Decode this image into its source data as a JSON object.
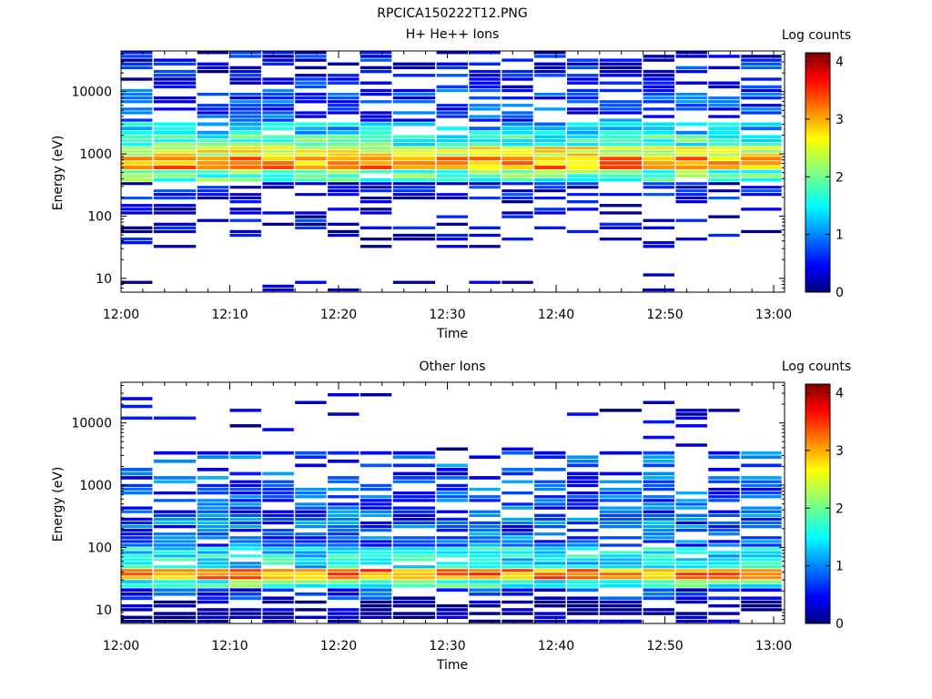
{
  "page_title": "RPCICA150222T12.PNG",
  "chart_data": [
    {
      "type": "heatmap",
      "title": "H+ He++ Ions",
      "xlabel": "Time",
      "ylabel": "Energy (eV)",
      "xscale": "linear",
      "yscale": "log",
      "xlim": [
        "12:00",
        "13:01"
      ],
      "ylim": [
        6,
        45000
      ],
      "x_ticks": [
        "12:00",
        "12:10",
        "12:20",
        "12:30",
        "12:40",
        "12:50",
        "13:00"
      ],
      "y_ticks": [
        10,
        100,
        1000,
        10000
      ],
      "y_tick_labels": [
        "10",
        "100",
        "1000",
        "10000"
      ],
      "colorbar": {
        "label": "Log counts",
        "range": [
          0,
          4.15
        ],
        "ticks": [
          0,
          1,
          2,
          3,
          4
        ],
        "tick_labels": [
          "0",
          "1",
          "2",
          "3",
          "4"
        ],
        "colormap": "jet"
      },
      "time_bins": [
        "12:00",
        "12:03",
        "12:07",
        "12:10",
        "12:13",
        "12:16",
        "12:19",
        "12:22",
        "12:25",
        "12:29",
        "12:32",
        "12:35",
        "12:38",
        "12:41",
        "12:44",
        "12:48",
        "12:51",
        "12:54",
        "12:57"
      ],
      "bands": [
        {
          "e_range": [
            45000,
            11000
          ],
          "value": 0.5,
          "fill": 0.6
        },
        {
          "e_range": [
            11000,
            3200
          ],
          "value": 0.75,
          "fill": 0.6
        },
        {
          "e_range": [
            3200,
            2000
          ],
          "value": 1.3,
          "fill": 0.85
        },
        {
          "e_range": [
            2000,
            1300
          ],
          "value": 1.8,
          "fill": 0.95
        },
        {
          "e_range": [
            1300,
            900
          ],
          "value": 2.5,
          "fill": 1.0
        },
        {
          "e_range": [
            900,
            550
          ],
          "value": 3.0,
          "fill": 1.0
        },
        {
          "e_range": [
            550,
            350
          ],
          "value": 1.9,
          "fill": 0.95
        },
        {
          "e_range": [
            350,
            180
          ],
          "value": 0.5,
          "fill": 0.6
        },
        {
          "e_range": [
            180,
            90
          ],
          "value": 0.25,
          "fill": 0.35
        },
        {
          "e_range": [
            90,
            30
          ],
          "value": 0.4,
          "fill": 0.3
        },
        {
          "e_range": [
            12,
            6
          ],
          "value": 0.1,
          "fill": 0.1
        }
      ]
    },
    {
      "type": "heatmap",
      "title": "Other Ions",
      "xlabel": "Time",
      "ylabel": "Energy (eV)",
      "xscale": "linear",
      "yscale": "log",
      "xlim": [
        "12:00",
        "13:01"
      ],
      "ylim": [
        6,
        45000
      ],
      "x_ticks": [
        "12:00",
        "12:10",
        "12:20",
        "12:30",
        "12:40",
        "12:50",
        "13:00"
      ],
      "y_ticks": [
        10,
        100,
        1000,
        10000
      ],
      "y_tick_labels": [
        "10",
        "100",
        "1000",
        "10000"
      ],
      "colorbar": {
        "label": "Log counts",
        "range": [
          0,
          4.15
        ],
        "ticks": [
          0,
          1,
          2,
          3,
          4
        ],
        "tick_labels": [
          "0",
          "1",
          "2",
          "3",
          "4"
        ],
        "colormap": "jet"
      },
      "time_bins": [
        "12:00",
        "12:03",
        "12:07",
        "12:10",
        "12:13",
        "12:16",
        "12:19",
        "12:22",
        "12:25",
        "12:29",
        "12:32",
        "12:35",
        "12:38",
        "12:41",
        "12:44",
        "12:48",
        "12:51",
        "12:54",
        "12:57"
      ],
      "bands": [
        {
          "e_range": [
            30000,
            3500
          ],
          "value": 0.3,
          "fill": 0.12
        },
        {
          "e_range": [
            3500,
            1200
          ],
          "value": 0.8,
          "fill": 0.45
        },
        {
          "e_range": [
            1200,
            300
          ],
          "value": 0.8,
          "fill": 0.7
        },
        {
          "e_range": [
            300,
            100
          ],
          "value": 0.9,
          "fill": 0.85
        },
        {
          "e_range": [
            100,
            45
          ],
          "value": 1.5,
          "fill": 0.95
        },
        {
          "e_range": [
            45,
            30
          ],
          "value": 3.1,
          "fill": 1.0
        },
        {
          "e_range": [
            30,
            22
          ],
          "value": 1.8,
          "fill": 1.0
        },
        {
          "e_range": [
            22,
            14
          ],
          "value": 0.6,
          "fill": 0.75
        },
        {
          "e_range": [
            14,
            6
          ],
          "value": 0.1,
          "fill": 0.6
        }
      ]
    }
  ]
}
